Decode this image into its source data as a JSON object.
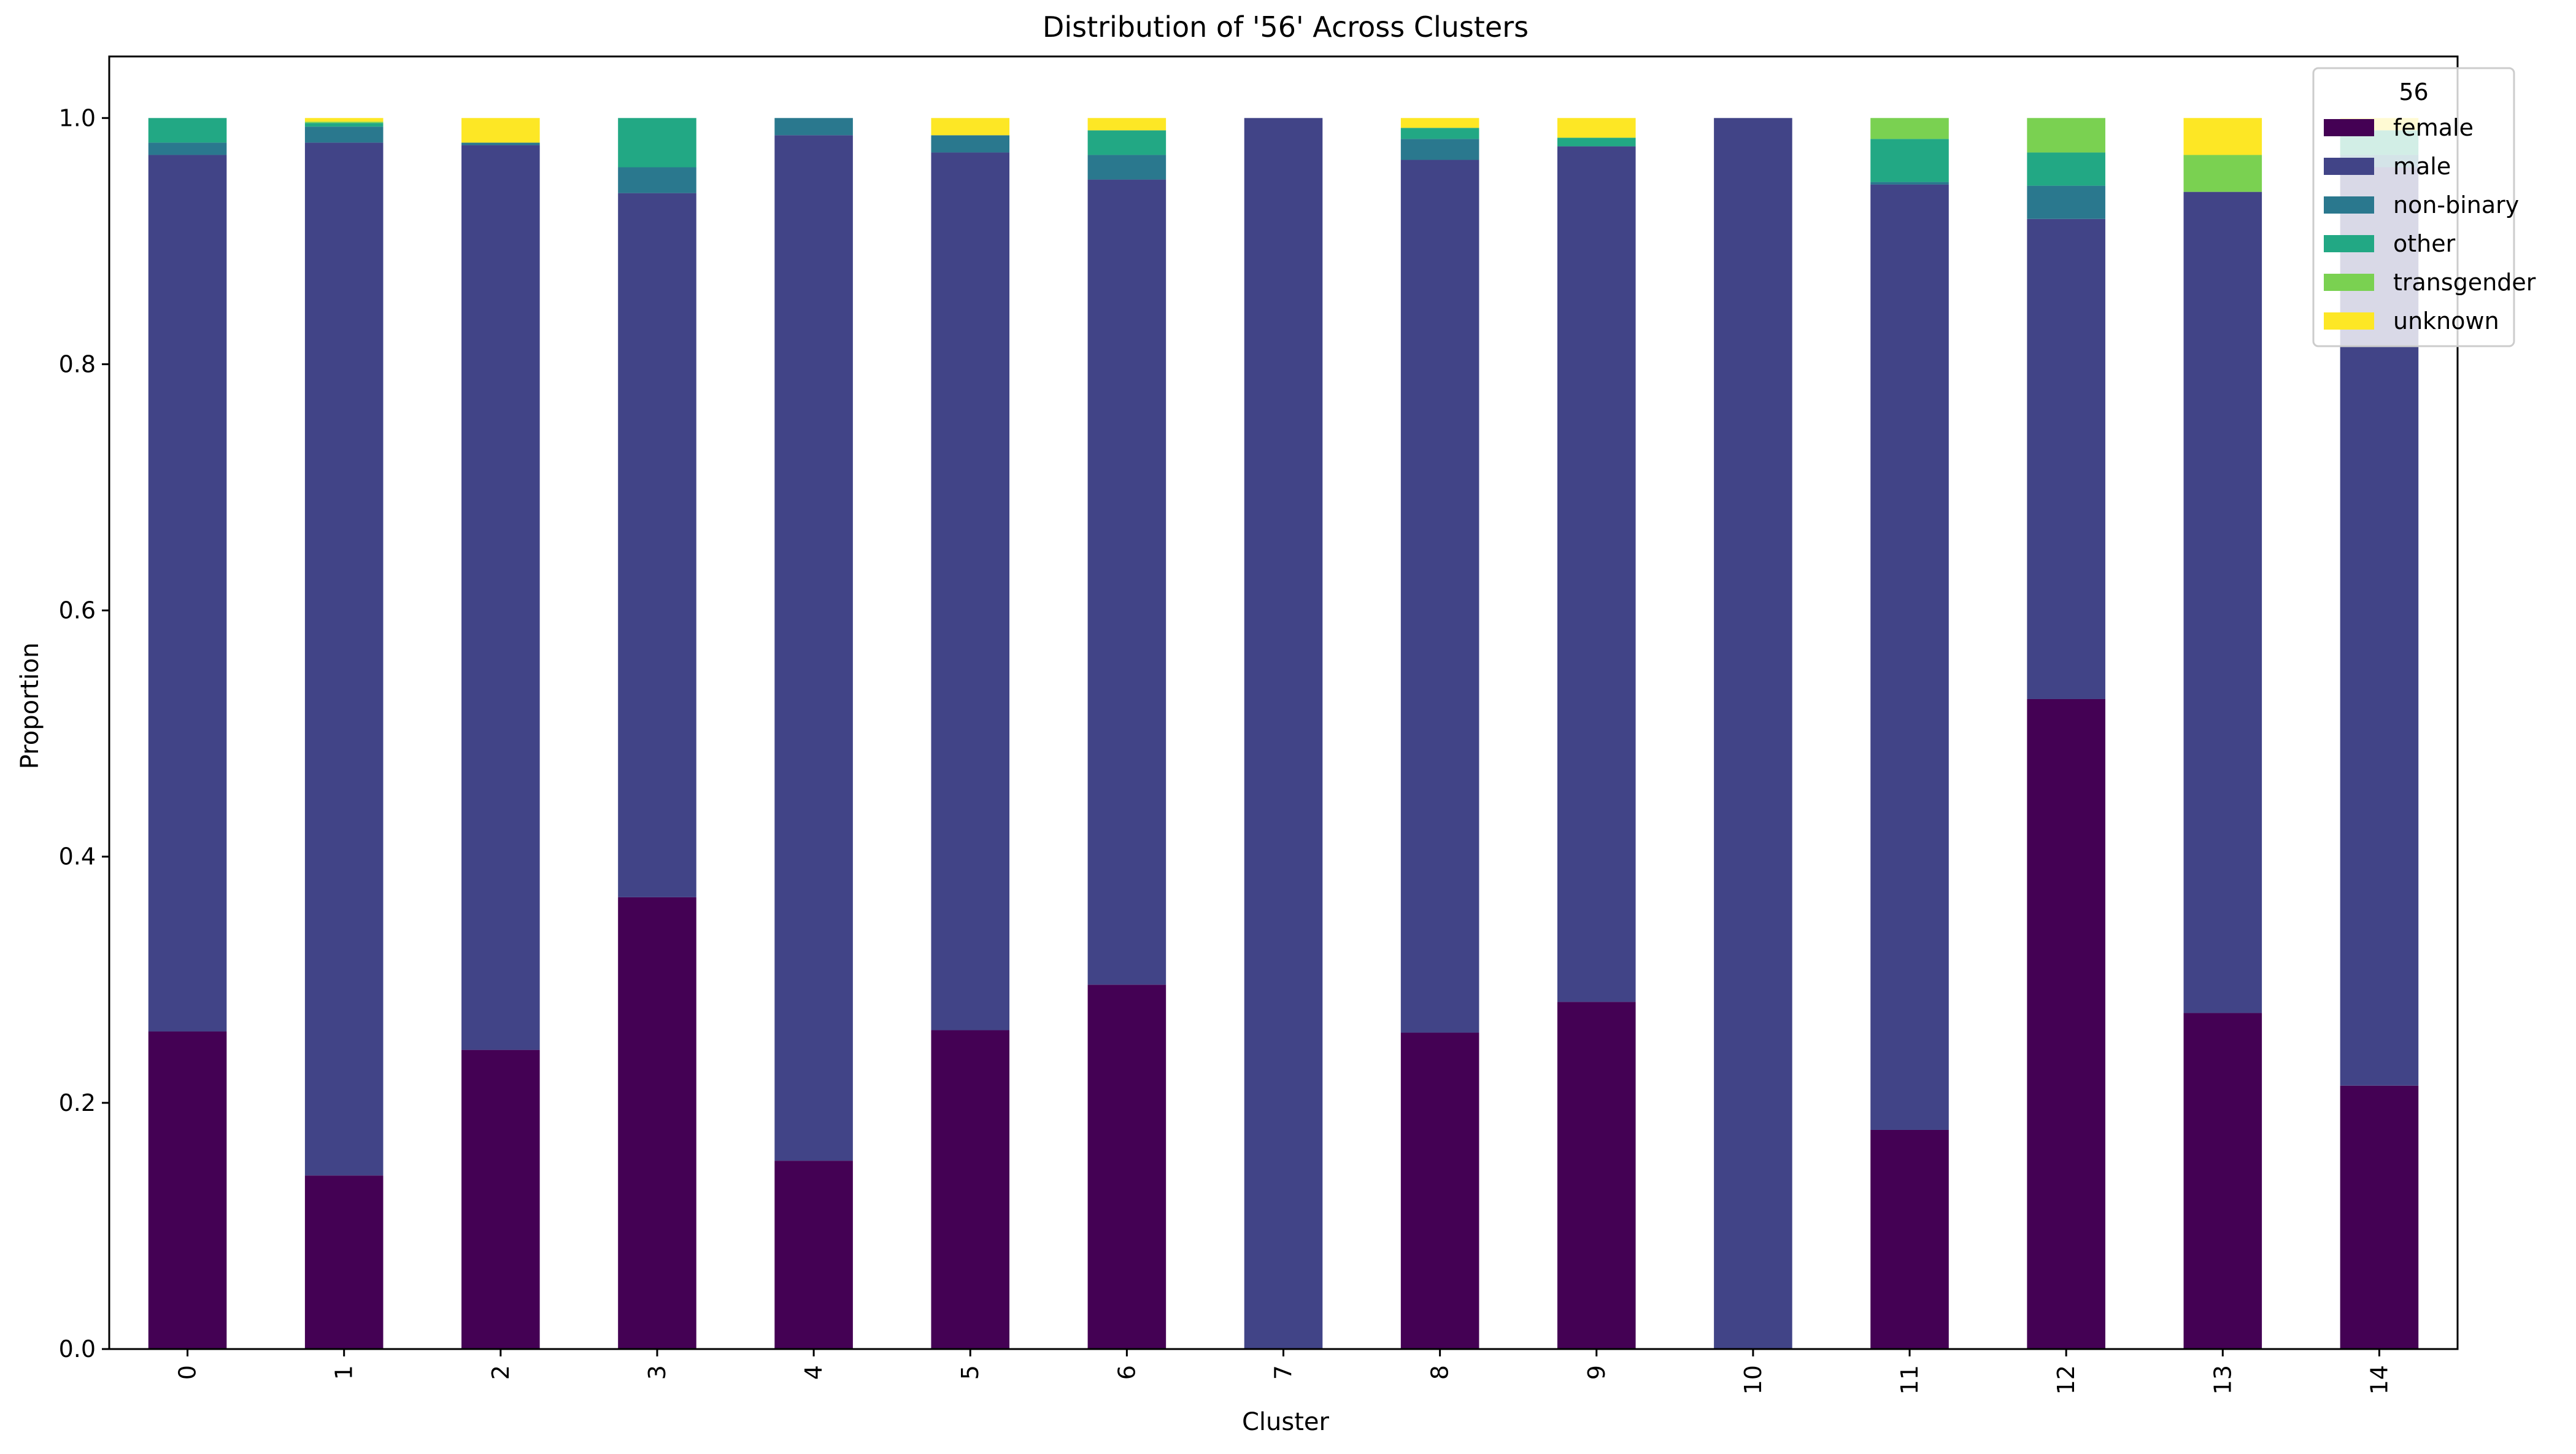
{
  "chart_data": {
    "type": "bar",
    "stacked": true,
    "title": "Distribution of '56' Across Clusters",
    "xlabel": "Cluster",
    "ylabel": "Proportion",
    "ylim": [
      0,
      1.05
    ],
    "yticks": [
      "0.0",
      "0.2",
      "0.4",
      "0.6",
      "0.8",
      "1.0"
    ],
    "grid": false,
    "legend": {
      "title": "56",
      "placement": "top-right"
    },
    "categories": [
      "0",
      "1",
      "2",
      "3",
      "4",
      "5",
      "6",
      "7",
      "8",
      "9",
      "10",
      "11",
      "12",
      "13",
      "14"
    ],
    "series": [
      {
        "name": "female",
        "color": "#440154",
        "values": [
          0.258,
          0.141,
          0.243,
          0.367,
          0.153,
          0.259,
          0.296,
          0.0,
          0.257,
          0.282,
          0.0,
          0.178,
          0.528,
          0.273,
          0.214
        ]
      },
      {
        "name": "male",
        "color": "#414487",
        "values": [
          0.712,
          0.839,
          0.735,
          0.572,
          0.833,
          0.713,
          0.654,
          1.0,
          0.709,
          0.695,
          1.0,
          0.768,
          0.39,
          0.667,
          0.746
        ]
      },
      {
        "name": "non-binary",
        "color": "#2a788e",
        "values": [
          0.01,
          0.013,
          0.002,
          0.021,
          0.014,
          0.014,
          0.02,
          0.0,
          0.017,
          0.0,
          0.0,
          0.002,
          0.027,
          0.0,
          0.01
        ]
      },
      {
        "name": "other",
        "color": "#22a884",
        "values": [
          0.02,
          0.003,
          0.0,
          0.04,
          0.0,
          0.0,
          0.02,
          0.0,
          0.009,
          0.007,
          0.0,
          0.035,
          0.027,
          0.0,
          0.02
        ]
      },
      {
        "name": "transgender",
        "color": "#7ad151",
        "values": [
          0.0,
          0.001,
          0.0,
          0.0,
          0.0,
          0.0,
          0.0,
          0.0,
          0.0,
          0.0,
          0.0,
          0.017,
          0.028,
          0.03,
          0.0
        ]
      },
      {
        "name": "unknown",
        "color": "#fde725",
        "values": [
          0.0,
          0.003,
          0.02,
          0.0,
          0.0,
          0.014,
          0.01,
          0.0,
          0.008,
          0.016,
          0.0,
          0.0,
          0.0,
          0.03,
          0.01
        ]
      }
    ]
  }
}
